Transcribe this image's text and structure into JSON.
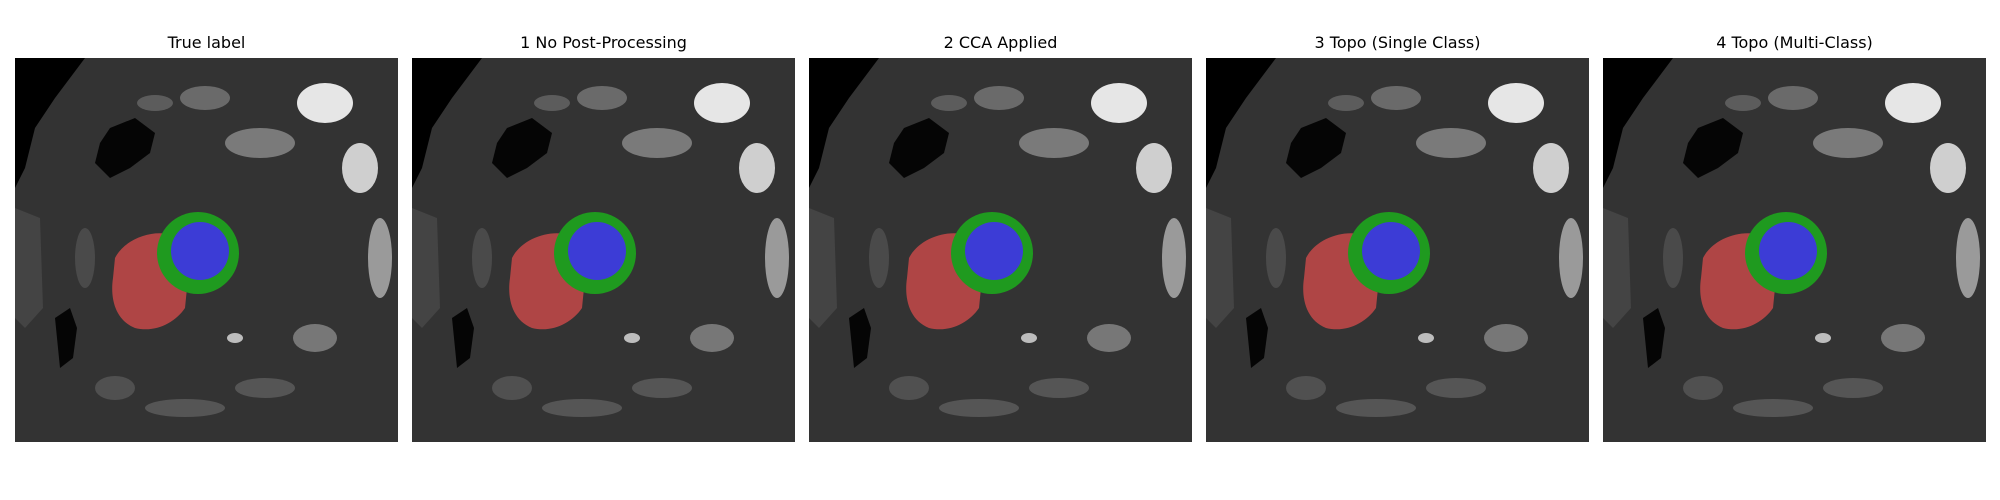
{
  "figure": {
    "panels": [
      {
        "title": "True label"
      },
      {
        "title": "1 No Post-Processing"
      },
      {
        "title": "2 CCA Applied"
      },
      {
        "title": "3 Topo (Single Class)"
      },
      {
        "title": "4 Topo (Multi-Class)"
      }
    ]
  },
  "colors": {
    "background_tissue": "#333333",
    "air": "#000000",
    "label_red": "#c04848",
    "label_green": "#1f9a1f",
    "label_blue": "#3c3cd6"
  }
}
